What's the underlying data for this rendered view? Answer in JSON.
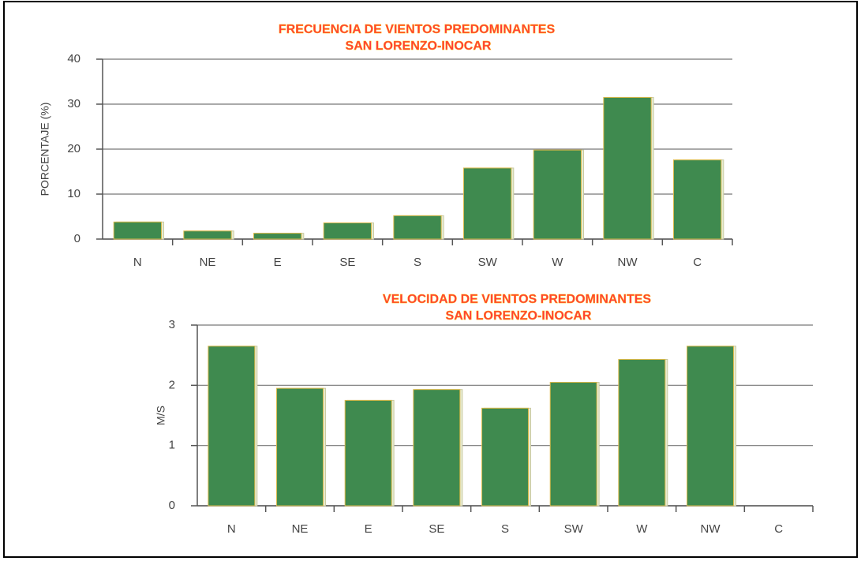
{
  "chart_data": [
    {
      "type": "bar",
      "title": "FRECUENCIA DE VIENTOS PREDOMINANTES",
      "subtitle": "SAN LORENZO-INOCAR",
      "y_label": "PORCENTAJE (%)",
      "categories": [
        "N",
        "NE",
        "E",
        "SE",
        "S",
        "SW",
        "W",
        "NW",
        "C"
      ],
      "values": [
        3.8,
        1.8,
        1.3,
        3.6,
        5.2,
        15.8,
        19.8,
        31.5,
        17.6
      ],
      "color": "#3f8a4f",
      "ylim": [
        0,
        40
      ],
      "yticks": [
        0,
        10,
        20,
        30,
        40
      ],
      "grid": true
    },
    {
      "type": "bar",
      "title": "VELOCIDAD DE VIENTOS PREDOMINANTES",
      "subtitle": "SAN LORENZO-INOCAR",
      "y_label": "M/S",
      "categories": [
        "N",
        "NE",
        "E",
        "SE",
        "S",
        "SW",
        "W",
        "NW",
        "C"
      ],
      "values": [
        2.65,
        1.95,
        1.75,
        1.93,
        1.62,
        2.05,
        2.43,
        2.65,
        null
      ],
      "color": "#3f8a4f",
      "ylim": [
        0,
        3
      ],
      "yticks": [
        0,
        1,
        2,
        3
      ],
      "grid": true
    }
  ]
}
